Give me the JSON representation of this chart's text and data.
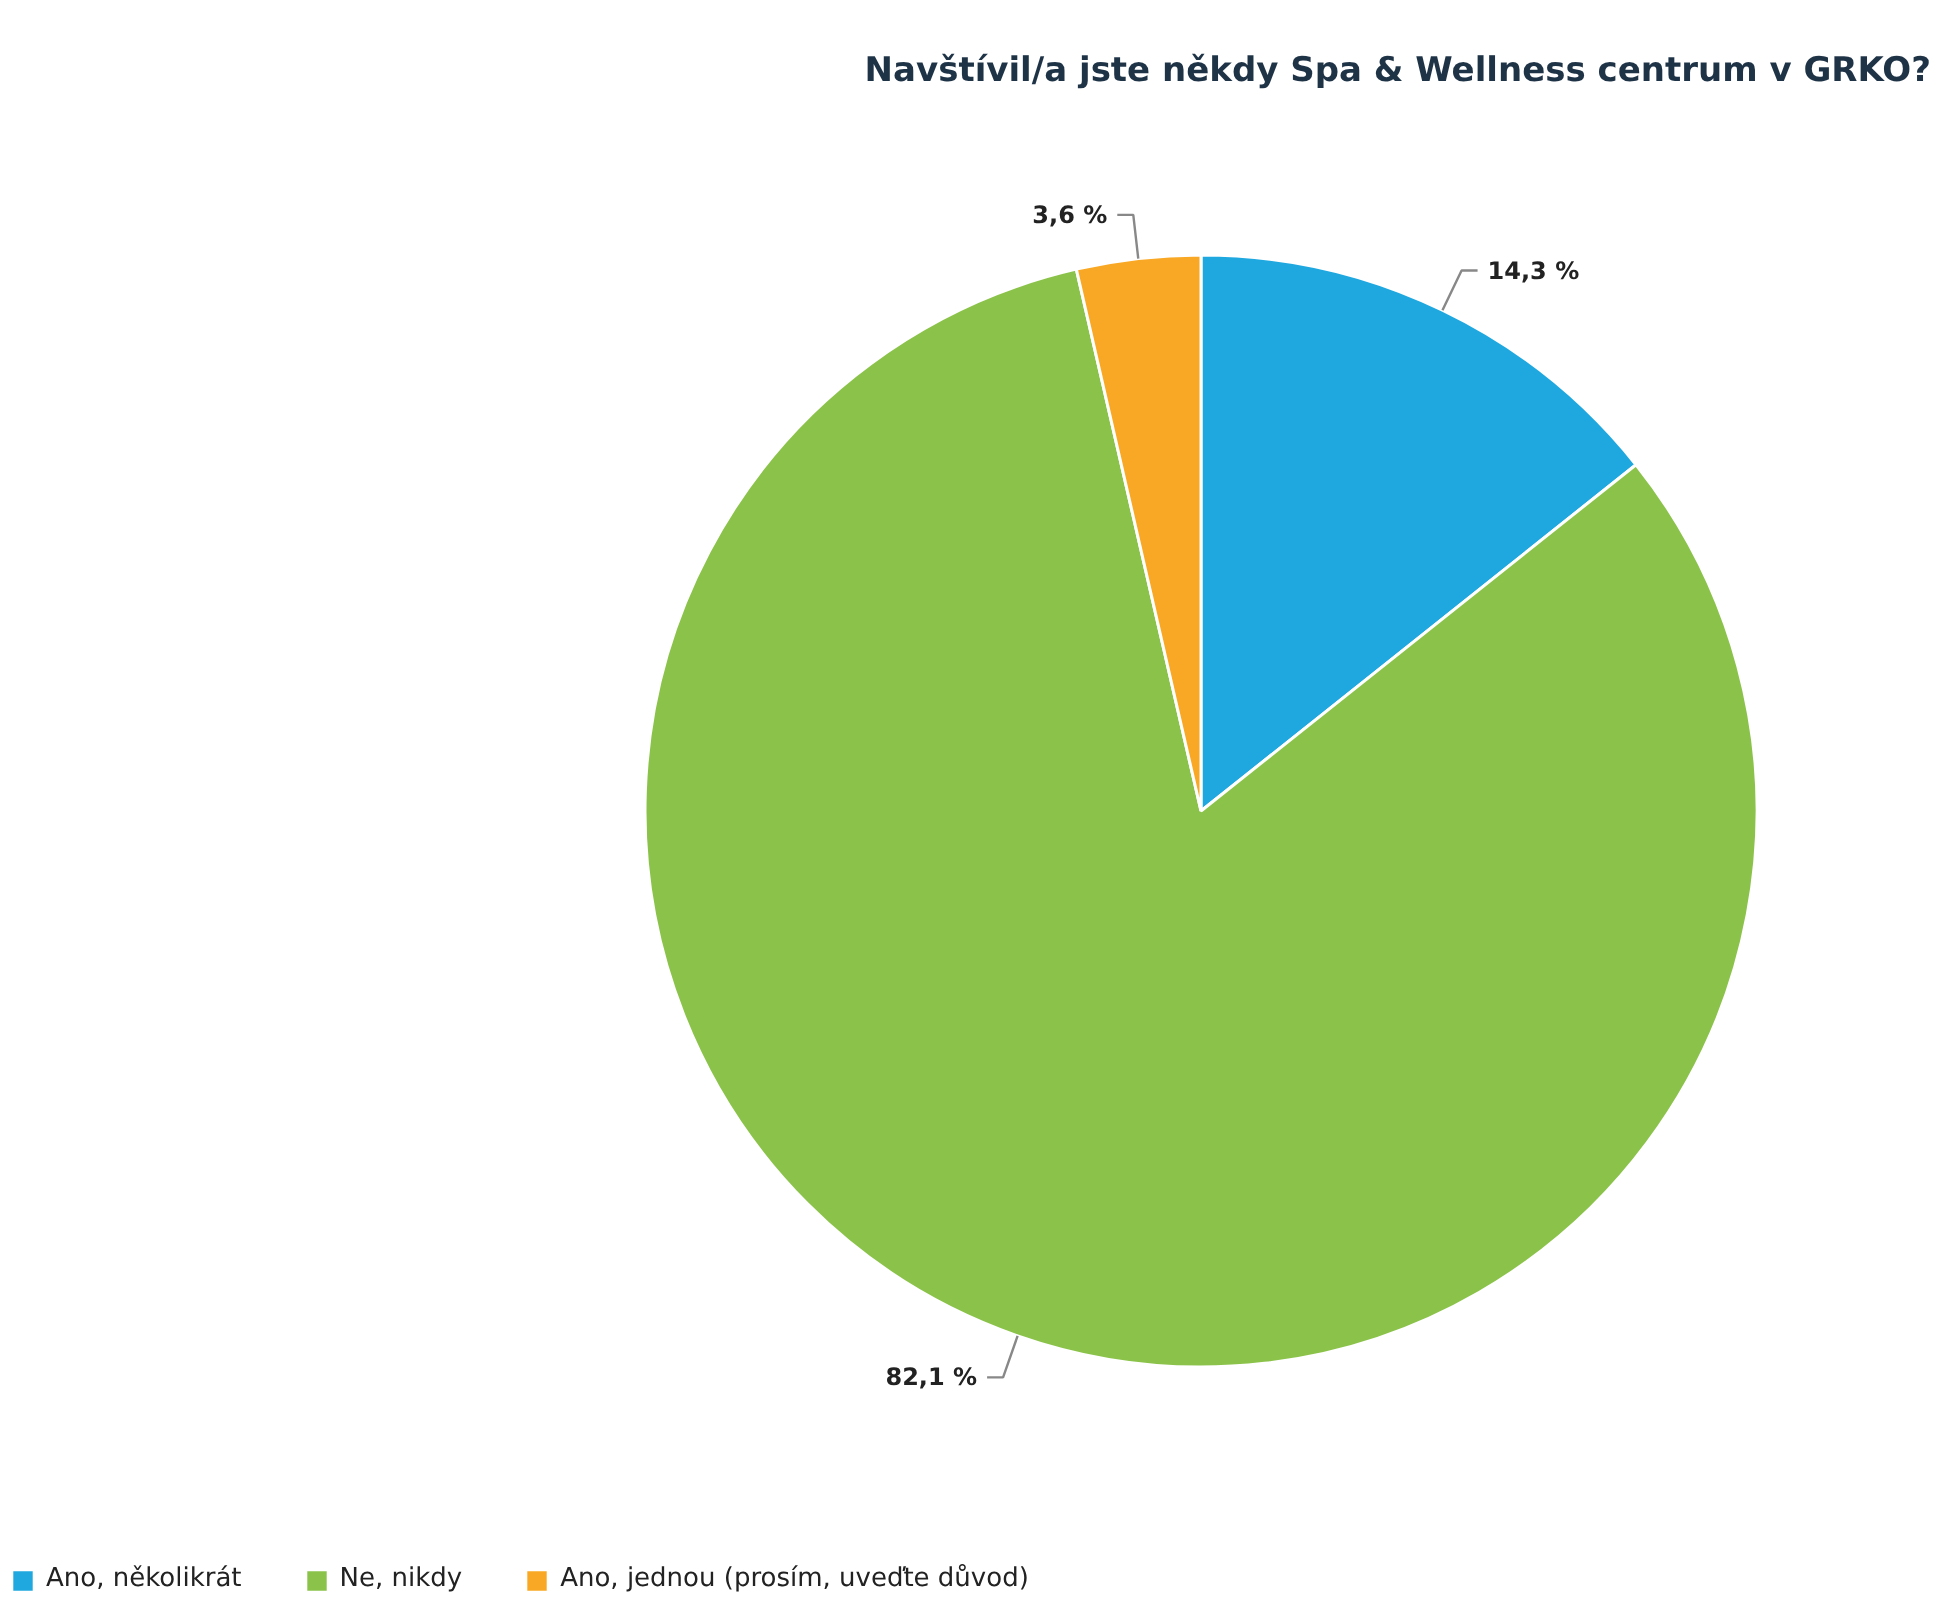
{
  "chart_data": {
    "type": "pie",
    "title": "Navštívil/a jste někdy Spa & Wellness centrum v GRKO?",
    "categories": [
      "Ano, několikrát",
      "Ne, nikdy",
      "Ano, jednou (prosím, uveďte důvod)"
    ],
    "values": [
      14.3,
      82.1,
      3.6
    ],
    "colors": [
      "#1fa8e0",
      "#8bc34a",
      "#f9a825"
    ],
    "value_labels": [
      "14,3 %",
      "82,1 %",
      "3,6 %"
    ],
    "legend": "bottom left"
  }
}
